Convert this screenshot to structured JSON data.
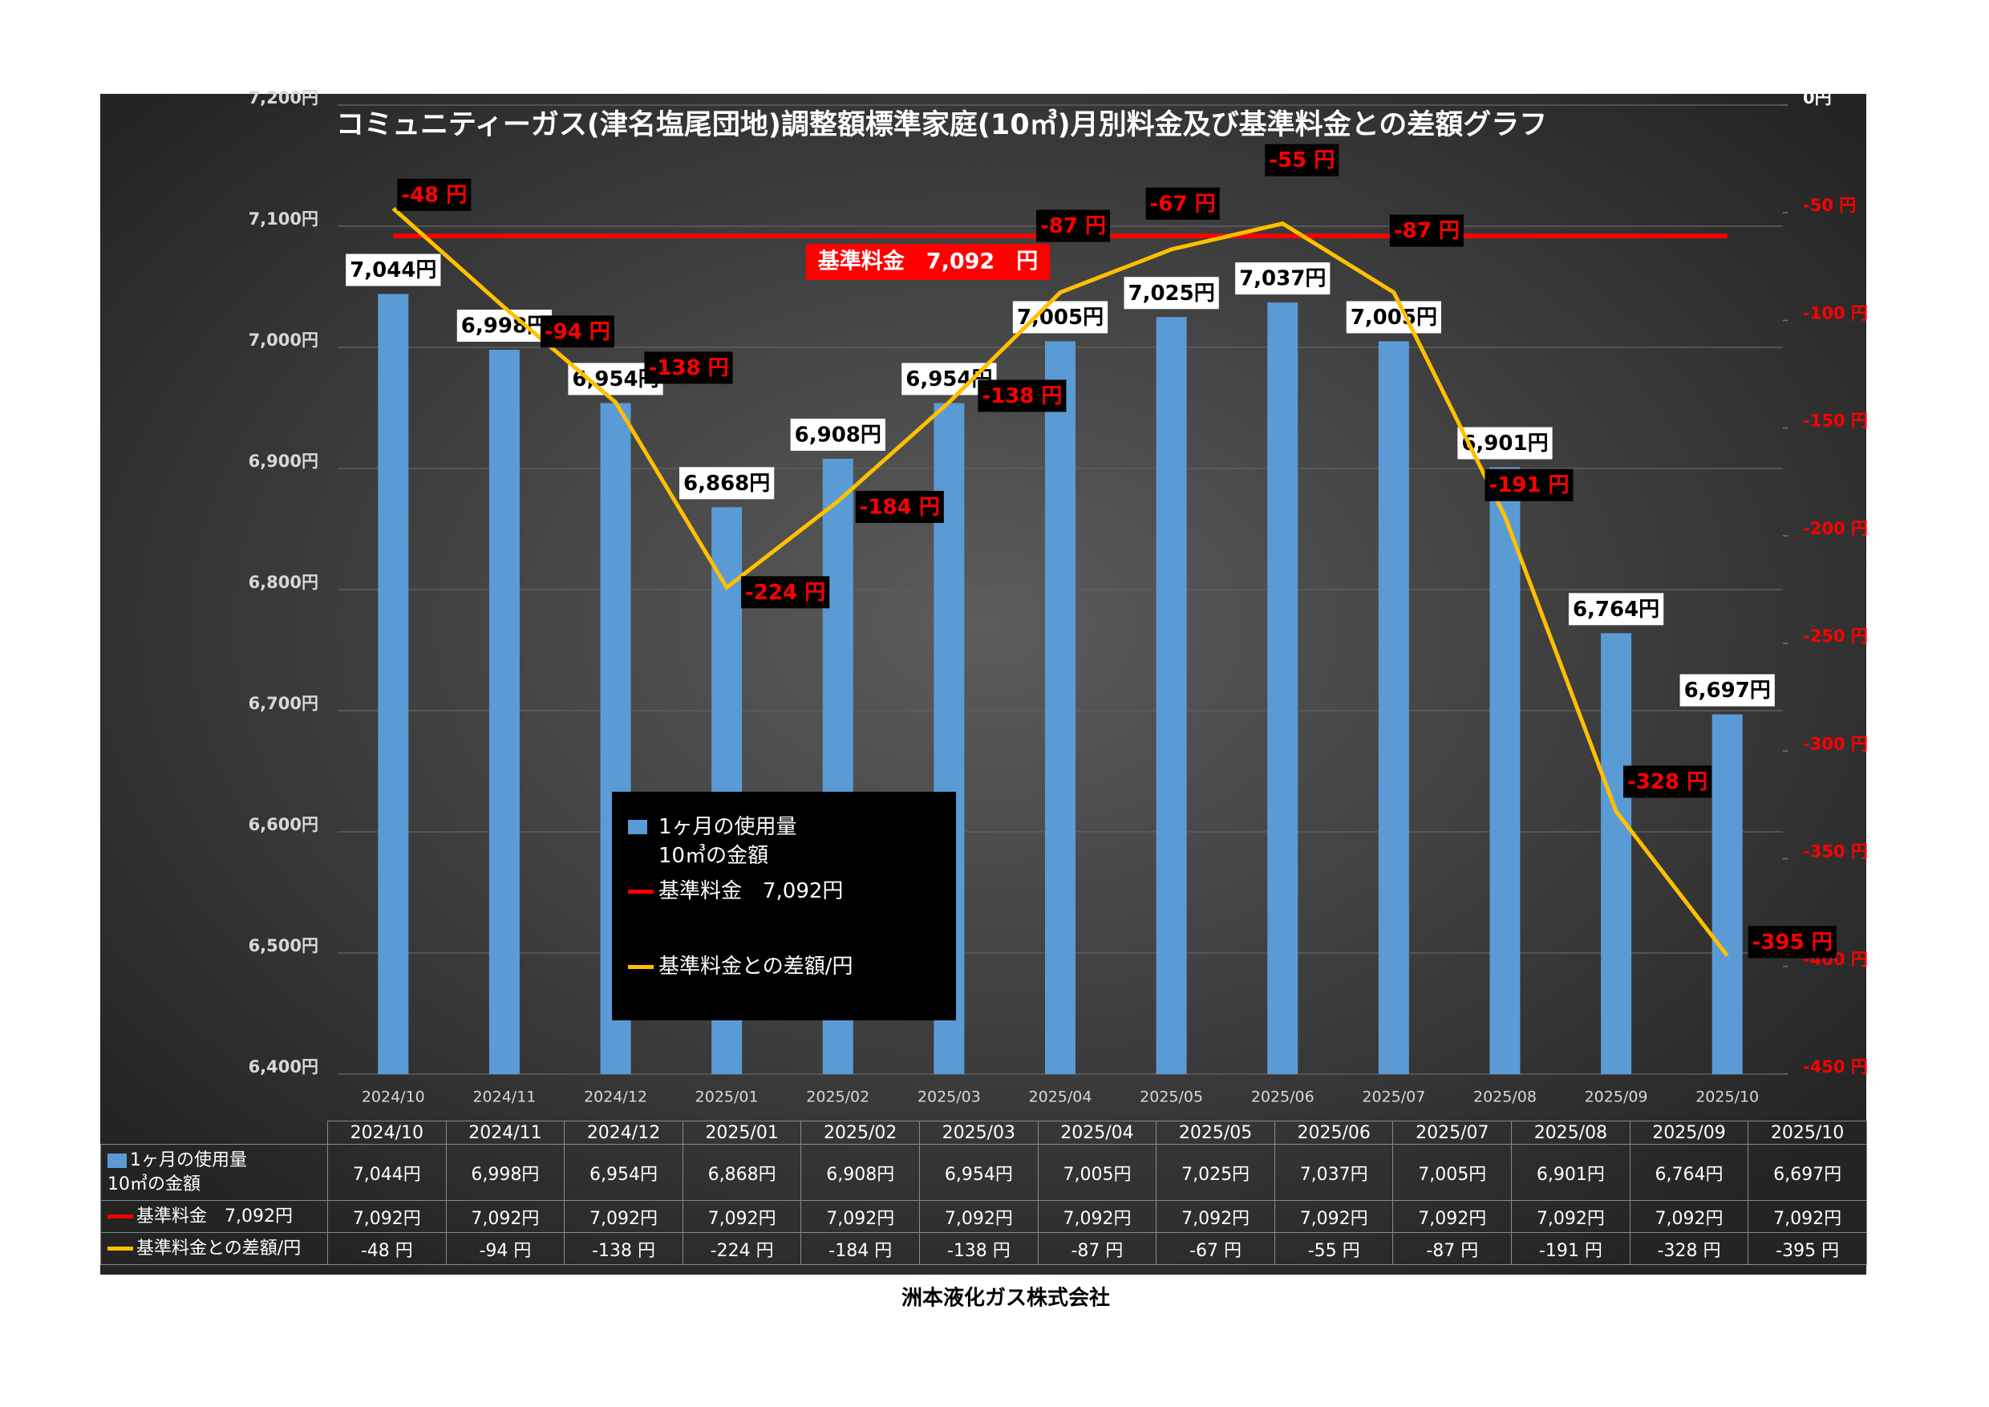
{
  "chart_data": {
    "type": "bar",
    "title": "コミュニティーガス(津名塩尾団地)調整額標準家庭(10㎥)月別料金及び基準料金との差額グラフ",
    "categories": [
      "2024/10",
      "2024/11",
      "2024/12",
      "2025/01",
      "2025/02",
      "2025/03",
      "2025/04",
      "2025/05",
      "2025/06",
      "2025/07",
      "2025/08",
      "2025/09",
      "2025/10"
    ],
    "series": [
      {
        "name": "1ヶ月の使用量\n10㎥の金額",
        "type": "bar",
        "color": "#5b9bd5",
        "values": [
          7044,
          6998,
          6954,
          6868,
          6908,
          6954,
          7005,
          7025,
          7037,
          7005,
          6901,
          6764,
          6697
        ],
        "value_labels": [
          "7,044円",
          "6,998円",
          "6,954円",
          "6,868円",
          "6,908円",
          "6,954円",
          "7,005円",
          "7,025円",
          "7,037円",
          "7,005円",
          "6,901円",
          "6,764円",
          "6,697円"
        ]
      },
      {
        "name": "基準料金　7,092円",
        "type": "line",
        "color": "#ff0000",
        "values": [
          7092,
          7092,
          7092,
          7092,
          7092,
          7092,
          7092,
          7092,
          7092,
          7092,
          7092,
          7092,
          7092
        ],
        "value_labels": [
          "7,092円",
          "7,092円",
          "7,092円",
          "7,092円",
          "7,092円",
          "7,092円",
          "7,092円",
          "7,092円",
          "7,092円",
          "7,092円",
          "7,092円",
          "7,092円",
          "7,092円"
        ]
      },
      {
        "name": "基準料金との差額/円",
        "type": "line",
        "color": "#ffc000",
        "axis": "y2",
        "values": [
          -48,
          -94,
          -138,
          -224,
          -184,
          -138,
          -87,
          -67,
          -55,
          -87,
          -191,
          -328,
          -395
        ],
        "value_labels": [
          "-48 円",
          "-94 円",
          "-138 円",
          "-224 円",
          "-184 円",
          "-138 円",
          "-87 円",
          "-67 円",
          "-55 円",
          "-87 円",
          "-191 円",
          "-328 円",
          "-395 円"
        ]
      }
    ],
    "ylim": [
      6400,
      7200
    ],
    "yticks": [
      {
        "value": 6400,
        "label": "6,400円"
      },
      {
        "value": 6500,
        "label": "6,500円"
      },
      {
        "value": 6600,
        "label": "6,600円"
      },
      {
        "value": 6700,
        "label": "6,700円"
      },
      {
        "value": 6800,
        "label": "6,800円"
      },
      {
        "value": 6900,
        "label": "6,900円"
      },
      {
        "value": 7000,
        "label": "7,000円"
      },
      {
        "value": 7100,
        "label": "7,100円"
      },
      {
        "value": 7200,
        "label": "7,200円"
      }
    ],
    "y2lim": [
      -450,
      0
    ],
    "y2ticks": [
      {
        "value": 0,
        "label": "0円"
      },
      {
        "value": -50,
        "label": "-50 円"
      },
      {
        "value": -100,
        "label": "-100 円"
      },
      {
        "value": -150,
        "label": "-150 円"
      },
      {
        "value": -200,
        "label": "-200 円"
      },
      {
        "value": -250,
        "label": "-250 円"
      },
      {
        "value": -300,
        "label": "-300 円"
      },
      {
        "value": -350,
        "label": "-350 円"
      },
      {
        "value": -400,
        "label": "-400 円"
      },
      {
        "value": -450,
        "label": "-450 円"
      }
    ],
    "grid": true,
    "annotations": [
      {
        "text": "基準料金　7,092　円"
      }
    ]
  },
  "footer": "洲本液化ガス株式会社"
}
